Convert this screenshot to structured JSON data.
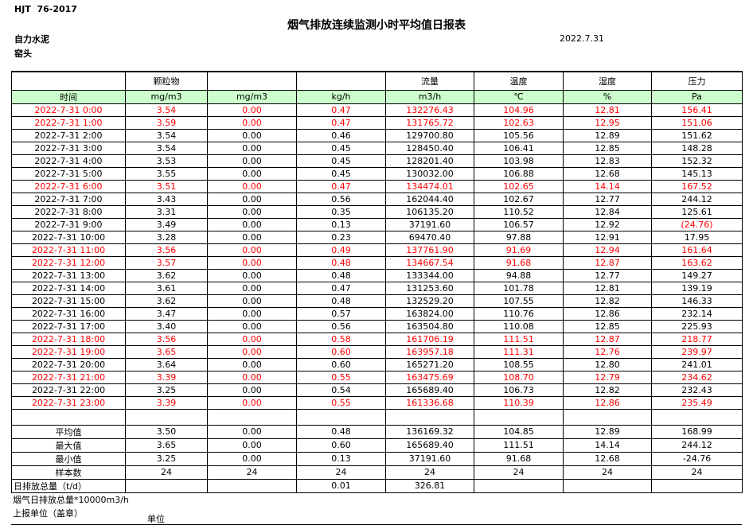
{
  "page": {
    "doc_code": "HJT  76-2017",
    "title": "烟气排放连续监测小时平均值日报表",
    "date": "2022.7.31",
    "company": "自力水泥",
    "location": "窑头"
  },
  "table": {
    "group_headers": [
      "",
      "颗粒物",
      "",
      "",
      "流量",
      "温度",
      "湿度",
      "压力"
    ],
    "unit_headers": [
      "时间",
      "mg/m3",
      "mg/m3",
      "kg/h",
      "m3/h",
      "℃",
      "%",
      "Pa"
    ],
    "rows": [
      {
        "time": "2022-7-31 0:00",
        "values": [
          "3.54",
          "0.00",
          "0.47",
          "132276.43",
          "104.96",
          "12.81",
          "156.41"
        ],
        "red": true
      },
      {
        "time": "2022-7-31 1:00",
        "values": [
          "3.59",
          "0.00",
          "0.47",
          "131765.72",
          "102.63",
          "12.95",
          "151.06"
        ],
        "red": true
      },
      {
        "time": "2022-7-31 2:00",
        "values": [
          "3.54",
          "0.00",
          "0.46",
          "129700.80",
          "105.56",
          "12.89",
          "151.62"
        ],
        "red": false
      },
      {
        "time": "2022-7-31 3:00",
        "values": [
          "3.54",
          "0.00",
          "0.45",
          "128450.40",
          "106.41",
          "12.85",
          "148.28"
        ],
        "red": false
      },
      {
        "time": "2022-7-31 4:00",
        "values": [
          "3.53",
          "0.00",
          "0.45",
          "128201.40",
          "103.98",
          "12.83",
          "152.32"
        ],
        "red": false
      },
      {
        "time": "2022-7-31 5:00",
        "values": [
          "3.55",
          "0.00",
          "0.45",
          "130032.00",
          "106.88",
          "12.68",
          "145.13"
        ],
        "red": false
      },
      {
        "time": "2022-7-31 6:00",
        "values": [
          "3.51",
          "0.00",
          "0.47",
          "134474.01",
          "102.65",
          "14.14",
          "167.52"
        ],
        "red": true
      },
      {
        "time": "2022-7-31 7:00",
        "values": [
          "3.43",
          "0.00",
          "0.56",
          "162044.40",
          "102.67",
          "12.77",
          "244.12"
        ],
        "red": false
      },
      {
        "time": "2022-7-31 8:00",
        "values": [
          "3.31",
          "0.00",
          "0.35",
          "106135.20",
          "110.52",
          "12.84",
          "125.61"
        ],
        "red": false
      },
      {
        "time": "2022-7-31 9:00",
        "values": [
          "3.49",
          "0.00",
          "0.13",
          "37191.60",
          "106.57",
          "12.92",
          "(24.76)"
        ],
        "red": false,
        "red_cells": [
          6
        ]
      },
      {
        "time": "2022-7-31 10:00",
        "values": [
          "3.28",
          "0.00",
          "0.23",
          "69470.40",
          "97.88",
          "12.91",
          "17.95"
        ],
        "red": false
      },
      {
        "time": "2022-7-31 11:00",
        "values": [
          "3.56",
          "0.00",
          "0.49",
          "137761.90",
          "91.69",
          "12.94",
          "161.64"
        ],
        "red": true
      },
      {
        "time": "2022-7-31 12:00",
        "values": [
          "3.57",
          "0.00",
          "0.48",
          "134667.54",
          "91.68",
          "12.87",
          "163.62"
        ],
        "red": true
      },
      {
        "time": "2022-7-31 13:00",
        "values": [
          "3.62",
          "0.00",
          "0.48",
          "133344.00",
          "94.88",
          "12.77",
          "149.27"
        ],
        "red": false
      },
      {
        "time": "2022-7-31 14:00",
        "values": [
          "3.61",
          "0.00",
          "0.47",
          "131253.60",
          "101.78",
          "12.81",
          "139.19"
        ],
        "red": false
      },
      {
        "time": "2022-7-31 15:00",
        "values": [
          "3.62",
          "0.00",
          "0.48",
          "132529.20",
          "107.55",
          "12.82",
          "146.33"
        ],
        "red": false
      },
      {
        "time": "2022-7-31 16:00",
        "values": [
          "3.47",
          "0.00",
          "0.57",
          "163824.00",
          "110.76",
          "12.86",
          "232.14"
        ],
        "red": false
      },
      {
        "time": "2022-7-31 17:00",
        "values": [
          "3.40",
          "0.00",
          "0.56",
          "163504.80",
          "110.08",
          "12.85",
          "225.93"
        ],
        "red": false
      },
      {
        "time": "2022-7-31 18:00",
        "values": [
          "3.56",
          "0.00",
          "0.58",
          "161706.19",
          "111.51",
          "12.87",
          "218.77"
        ],
        "red": true
      },
      {
        "time": "2022-7-31 19:00",
        "values": [
          "3.65",
          "0.00",
          "0.60",
          "163957.18",
          "111.31",
          "12.76",
          "239.97"
        ],
        "red": true
      },
      {
        "time": "2022-7-31 20:00",
        "values": [
          "3.64",
          "0.00",
          "0.60",
          "165271.20",
          "108.55",
          "12.80",
          "241.01"
        ],
        "red": false
      },
      {
        "time": "2022-7-31 21:00",
        "values": [
          "3.39",
          "0.00",
          "0.55",
          "163475.69",
          "108.70",
          "12.79",
          "234.62"
        ],
        "red": true
      },
      {
        "time": "2022-7-31 22:00",
        "values": [
          "3.25",
          "0.00",
          "0.54",
          "165689.40",
          "106.73",
          "12.82",
          "232.43"
        ],
        "red": false
      },
      {
        "time": "2022-7-31 23:00",
        "values": [
          "3.39",
          "0.00",
          "0.55",
          "161336.68",
          "110.39",
          "12.86",
          "235.49"
        ],
        "red": true
      }
    ],
    "summary": [
      {
        "label": "平均值",
        "align": "center",
        "values": [
          "3.50",
          "0.00",
          "0.48",
          "136169.32",
          "104.85",
          "12.89",
          "168.99"
        ]
      },
      {
        "label": "最大值",
        "align": "center",
        "values": [
          "3.65",
          "0.00",
          "0.60",
          "165689.40",
          "111.51",
          "14.14",
          "244.12"
        ]
      },
      {
        "label": "最小值",
        "align": "center",
        "values": [
          "3.25",
          "0.00",
          "0.13",
          "37191.60",
          "91.68",
          "12.68",
          "-24.76"
        ]
      },
      {
        "label": "样本数",
        "align": "center",
        "values": [
          "24",
          "24",
          "24",
          "24",
          "24",
          "24",
          "24"
        ]
      },
      {
        "label": "日排放总量（t/d）",
        "align": "left",
        "values": [
          "",
          "",
          "0.01",
          "326.81",
          "",
          "",
          ""
        ]
      }
    ]
  },
  "footer": {
    "note": "烟气日排放总量*10000m3/h",
    "report_unit": "上报单位（盖章）",
    "unit_label": "单位"
  },
  "colors": {
    "flag_red": "#ff0000",
    "header_green": "#ccffcc"
  }
}
